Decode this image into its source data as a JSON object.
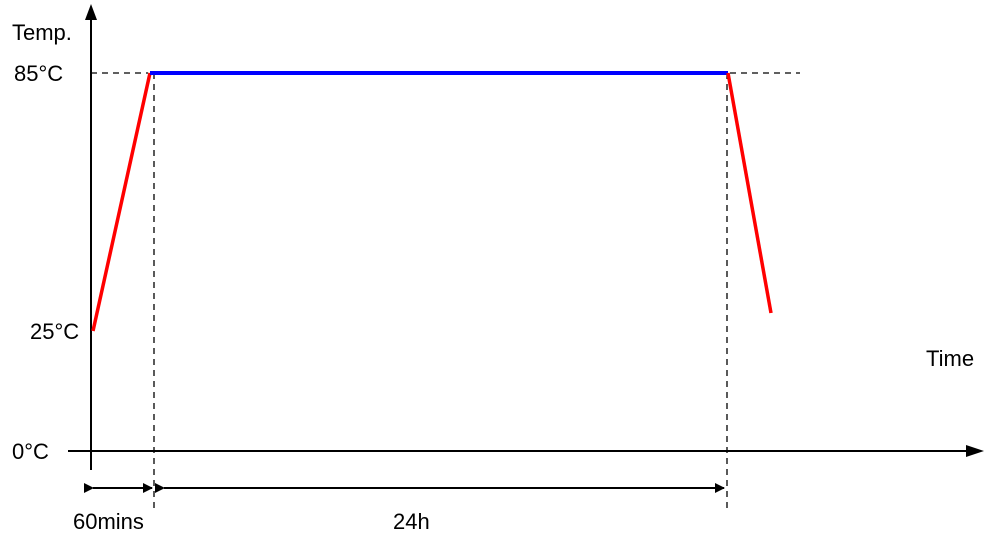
{
  "axis": {
    "y_label": "Temp.",
    "x_label": "Time"
  },
  "levels": {
    "high": "85°C",
    "start": "25°C",
    "zero": "0°C"
  },
  "durations": {
    "ramp": "60mins",
    "dwell": "24h"
  },
  "colors": {
    "ramp": "#ff0000",
    "dwell": "#0000ff",
    "axis": "#000000"
  }
}
